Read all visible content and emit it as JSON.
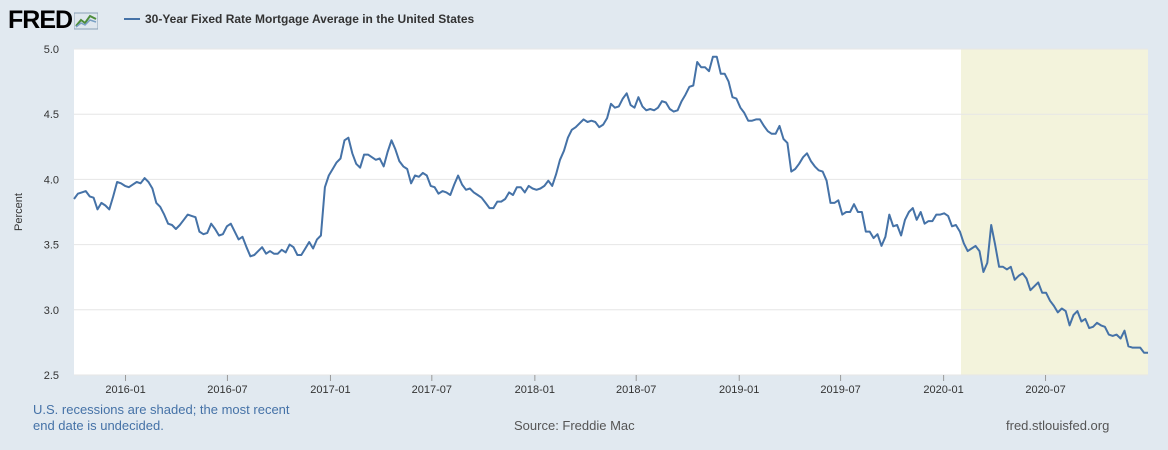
{
  "header": {
    "logo_text": "FRED",
    "legend_label": "30-Year Fixed Rate Mortgage Average in the United States"
  },
  "footer": {
    "note_line1": "U.S. recessions are shaded; the most recent",
    "note_line2": "end date is undecided.",
    "source": "Source: Freddie Mac",
    "url": "fred.stlouisfed.org"
  },
  "colors": {
    "line": "#4572a7",
    "recession": "#f3f3dc",
    "grid": "#e6e6e6",
    "plot_bg": "#ffffff"
  },
  "chart_data": {
    "type": "line",
    "title": "30-Year Fixed Rate Mortgage Average in the United States",
    "ylabel": "Percent",
    "xlabel": "",
    "ylim": [
      2.5,
      5.0
    ],
    "yticks": [
      2.5,
      3.0,
      3.5,
      4.0,
      4.5,
      5.0
    ],
    "xlim": [
      "2015-10-01",
      "2020-12-31"
    ],
    "xticks": [
      "2016-01",
      "2016-07",
      "2017-01",
      "2017-07",
      "2018-01",
      "2018-07",
      "2019-01",
      "2019-07",
      "2020-01",
      "2020-07"
    ],
    "recession": {
      "start": "2020-02-01",
      "end": "2020-12-31"
    },
    "series": [
      {
        "name": "30-Year Fixed Rate Mortgage Average in the United States",
        "points": [
          [
            "2015-10-01",
            3.85
          ],
          [
            "2015-10-08",
            3.89
          ],
          [
            "2015-10-15",
            3.9
          ],
          [
            "2015-10-22",
            3.91
          ],
          [
            "2015-10-29",
            3.87
          ],
          [
            "2015-11-05",
            3.86
          ],
          [
            "2015-11-12",
            3.77
          ],
          [
            "2015-11-19",
            3.82
          ],
          [
            "2015-11-26",
            3.8
          ],
          [
            "2015-12-03",
            3.77
          ],
          [
            "2015-12-10",
            3.87
          ],
          [
            "2015-12-17",
            3.98
          ],
          [
            "2015-12-24",
            3.97
          ],
          [
            "2015-12-31",
            3.95
          ],
          [
            "2016-01-07",
            3.94
          ],
          [
            "2016-01-14",
            3.96
          ],
          [
            "2016-01-21",
            3.98
          ],
          [
            "2016-01-28",
            3.97
          ],
          [
            "2016-02-04",
            4.01
          ],
          [
            "2016-02-11",
            3.98
          ],
          [
            "2016-02-18",
            3.93
          ],
          [
            "2016-02-25",
            3.82
          ],
          [
            "2016-03-03",
            3.79
          ],
          [
            "2016-03-10",
            3.73
          ],
          [
            "2016-03-17",
            3.66
          ],
          [
            "2016-03-24",
            3.65
          ],
          [
            "2016-03-31",
            3.62
          ],
          [
            "2016-04-07",
            3.65
          ],
          [
            "2016-04-14",
            3.69
          ],
          [
            "2016-04-21",
            3.73
          ],
          [
            "2016-04-28",
            3.72
          ],
          [
            "2016-05-05",
            3.71
          ],
          [
            "2016-05-12",
            3.6
          ],
          [
            "2016-05-19",
            3.58
          ],
          [
            "2016-05-26",
            3.59
          ],
          [
            "2016-06-02",
            3.66
          ],
          [
            "2016-06-09",
            3.62
          ],
          [
            "2016-06-16",
            3.57
          ],
          [
            "2016-06-23",
            3.58
          ],
          [
            "2016-06-30",
            3.64
          ],
          [
            "2016-07-07",
            3.66
          ],
          [
            "2016-07-14",
            3.6
          ],
          [
            "2016-07-21",
            3.54
          ],
          [
            "2016-07-28",
            3.56
          ],
          [
            "2016-08-04",
            3.48
          ],
          [
            "2016-08-11",
            3.41
          ],
          [
            "2016-08-18",
            3.42
          ],
          [
            "2016-08-25",
            3.45
          ],
          [
            "2016-09-01",
            3.48
          ],
          [
            "2016-09-08",
            3.43
          ],
          [
            "2016-09-15",
            3.45
          ],
          [
            "2016-09-22",
            3.43
          ],
          [
            "2016-09-29",
            3.43
          ],
          [
            "2016-10-06",
            3.46
          ],
          [
            "2016-10-13",
            3.44
          ],
          [
            "2016-10-20",
            3.5
          ],
          [
            "2016-10-27",
            3.48
          ],
          [
            "2016-11-03",
            3.42
          ],
          [
            "2016-11-10",
            3.42
          ],
          [
            "2016-11-17",
            3.47
          ],
          [
            "2016-11-24",
            3.52
          ],
          [
            "2016-12-01",
            3.47
          ],
          [
            "2016-12-08",
            3.54
          ],
          [
            "2016-12-15",
            3.57
          ],
          [
            "2016-12-22",
            3.94
          ],
          [
            "2016-12-29",
            4.03
          ],
          [
            "2017-01-05",
            4.08
          ],
          [
            "2017-01-12",
            4.13
          ],
          [
            "2017-01-19",
            4.16
          ],
          [
            "2017-01-26",
            4.3
          ],
          [
            "2017-02-02",
            4.32
          ],
          [
            "2017-02-09",
            4.2
          ],
          [
            "2017-02-16",
            4.12
          ],
          [
            "2017-02-23",
            4.09
          ],
          [
            "2017-03-02",
            4.19
          ],
          [
            "2017-03-09",
            4.19
          ],
          [
            "2017-03-16",
            4.17
          ],
          [
            "2017-03-23",
            4.15
          ],
          [
            "2017-03-30",
            4.16
          ],
          [
            "2017-04-06",
            4.1
          ],
          [
            "2017-04-13",
            4.21
          ],
          [
            "2017-04-20",
            4.3
          ],
          [
            "2017-04-27",
            4.23
          ],
          [
            "2017-05-04",
            4.14
          ],
          [
            "2017-05-11",
            4.1
          ],
          [
            "2017-05-18",
            4.08
          ],
          [
            "2017-05-25",
            3.97
          ],
          [
            "2017-06-01",
            4.03
          ],
          [
            "2017-06-08",
            4.02
          ],
          [
            "2017-06-15",
            4.05
          ],
          [
            "2017-06-22",
            4.03
          ],
          [
            "2017-06-29",
            3.95
          ],
          [
            "2017-07-06",
            3.94
          ],
          [
            "2017-07-13",
            3.89
          ],
          [
            "2017-07-20",
            3.91
          ],
          [
            "2017-07-27",
            3.9
          ],
          [
            "2017-08-03",
            3.88
          ],
          [
            "2017-08-10",
            3.96
          ],
          [
            "2017-08-17",
            4.03
          ],
          [
            "2017-08-24",
            3.96
          ],
          [
            "2017-08-31",
            3.92
          ],
          [
            "2017-09-07",
            3.93
          ],
          [
            "2017-09-14",
            3.9
          ],
          [
            "2017-09-21",
            3.88
          ],
          [
            "2017-09-28",
            3.86
          ],
          [
            "2017-10-05",
            3.82
          ],
          [
            "2017-10-12",
            3.78
          ],
          [
            "2017-10-19",
            3.78
          ],
          [
            "2017-10-26",
            3.83
          ],
          [
            "2017-11-02",
            3.83
          ],
          [
            "2017-11-09",
            3.85
          ],
          [
            "2017-11-16",
            3.9
          ],
          [
            "2017-11-23",
            3.88
          ],
          [
            "2017-11-30",
            3.94
          ],
          [
            "2017-12-07",
            3.94
          ],
          [
            "2017-12-14",
            3.9
          ],
          [
            "2017-12-21",
            3.95
          ],
          [
            "2017-12-28",
            3.93
          ],
          [
            "2018-01-04",
            3.92
          ],
          [
            "2018-01-11",
            3.93
          ],
          [
            "2018-01-18",
            3.95
          ],
          [
            "2018-01-25",
            3.99
          ],
          [
            "2018-02-01",
            3.95
          ],
          [
            "2018-02-08",
            4.04
          ],
          [
            "2018-02-15",
            4.15
          ],
          [
            "2018-02-22",
            4.22
          ],
          [
            "2018-03-01",
            4.32
          ],
          [
            "2018-03-08",
            4.38
          ],
          [
            "2018-03-15",
            4.4
          ],
          [
            "2018-03-22",
            4.43
          ],
          [
            "2018-03-29",
            4.46
          ],
          [
            "2018-04-05",
            4.44
          ],
          [
            "2018-04-12",
            4.45
          ],
          [
            "2018-04-19",
            4.44
          ],
          [
            "2018-04-26",
            4.4
          ],
          [
            "2018-05-03",
            4.42
          ],
          [
            "2018-05-10",
            4.47
          ],
          [
            "2018-05-17",
            4.58
          ],
          [
            "2018-05-24",
            4.55
          ],
          [
            "2018-05-31",
            4.56
          ],
          [
            "2018-06-07",
            4.62
          ],
          [
            "2018-06-14",
            4.66
          ],
          [
            "2018-06-21",
            4.57
          ],
          [
            "2018-06-28",
            4.55
          ],
          [
            "2018-07-05",
            4.63
          ],
          [
            "2018-07-12",
            4.56
          ],
          [
            "2018-07-19",
            4.53
          ],
          [
            "2018-07-26",
            4.54
          ],
          [
            "2018-08-02",
            4.53
          ],
          [
            "2018-08-09",
            4.55
          ],
          [
            "2018-08-16",
            4.6
          ],
          [
            "2018-08-23",
            4.59
          ],
          [
            "2018-08-30",
            4.54
          ],
          [
            "2018-09-06",
            4.52
          ],
          [
            "2018-09-13",
            4.53
          ],
          [
            "2018-09-20",
            4.6
          ],
          [
            "2018-09-27",
            4.65
          ],
          [
            "2018-10-04",
            4.71
          ],
          [
            "2018-10-11",
            4.72
          ],
          [
            "2018-10-18",
            4.9
          ],
          [
            "2018-10-25",
            4.86
          ],
          [
            "2018-11-01",
            4.86
          ],
          [
            "2018-11-08",
            4.83
          ],
          [
            "2018-11-15",
            4.94
          ],
          [
            "2018-11-22",
            4.94
          ],
          [
            "2018-11-29",
            4.81
          ],
          [
            "2018-12-06",
            4.81
          ],
          [
            "2018-12-13",
            4.75
          ],
          [
            "2018-12-20",
            4.63
          ],
          [
            "2018-12-27",
            4.62
          ],
          [
            "2019-01-03",
            4.55
          ],
          [
            "2019-01-10",
            4.51
          ],
          [
            "2019-01-17",
            4.45
          ],
          [
            "2019-01-24",
            4.45
          ],
          [
            "2019-01-31",
            4.46
          ],
          [
            "2019-02-07",
            4.46
          ],
          [
            "2019-02-14",
            4.41
          ],
          [
            "2019-02-21",
            4.37
          ],
          [
            "2019-02-28",
            4.35
          ],
          [
            "2019-03-07",
            4.35
          ],
          [
            "2019-03-14",
            4.41
          ],
          [
            "2019-03-21",
            4.31
          ],
          [
            "2019-03-28",
            4.28
          ],
          [
            "2019-04-04",
            4.06
          ],
          [
            "2019-04-11",
            4.08
          ],
          [
            "2019-04-18",
            4.12
          ],
          [
            "2019-04-25",
            4.17
          ],
          [
            "2019-05-02",
            4.2
          ],
          [
            "2019-05-09",
            4.14
          ],
          [
            "2019-05-16",
            4.1
          ],
          [
            "2019-05-23",
            4.07
          ],
          [
            "2019-05-30",
            4.06
          ],
          [
            "2019-06-06",
            3.99
          ],
          [
            "2019-06-13",
            3.82
          ],
          [
            "2019-06-20",
            3.82
          ],
          [
            "2019-06-27",
            3.84
          ],
          [
            "2019-07-04",
            3.73
          ],
          [
            "2019-07-11",
            3.75
          ],
          [
            "2019-07-18",
            3.75
          ],
          [
            "2019-07-25",
            3.81
          ],
          [
            "2019-08-01",
            3.75
          ],
          [
            "2019-08-08",
            3.75
          ],
          [
            "2019-08-15",
            3.6
          ],
          [
            "2019-08-22",
            3.6
          ],
          [
            "2019-08-29",
            3.55
          ],
          [
            "2019-09-05",
            3.58
          ],
          [
            "2019-09-12",
            3.49
          ],
          [
            "2019-09-19",
            3.56
          ],
          [
            "2019-09-26",
            3.73
          ],
          [
            "2019-10-03",
            3.64
          ],
          [
            "2019-10-10",
            3.65
          ],
          [
            "2019-10-17",
            3.57
          ],
          [
            "2019-10-24",
            3.69
          ],
          [
            "2019-10-31",
            3.75
          ],
          [
            "2019-11-07",
            3.78
          ],
          [
            "2019-11-14",
            3.69
          ],
          [
            "2019-11-21",
            3.75
          ],
          [
            "2019-11-28",
            3.66
          ],
          [
            "2019-12-05",
            3.68
          ],
          [
            "2019-12-12",
            3.68
          ],
          [
            "2019-12-19",
            3.73
          ],
          [
            "2019-12-26",
            3.73
          ],
          [
            "2020-01-02",
            3.74
          ],
          [
            "2020-01-09",
            3.72
          ],
          [
            "2020-01-16",
            3.64
          ],
          [
            "2020-01-23",
            3.65
          ],
          [
            "2020-01-30",
            3.6
          ],
          [
            "2020-02-06",
            3.51
          ],
          [
            "2020-02-13",
            3.45
          ],
          [
            "2020-02-20",
            3.47
          ],
          [
            "2020-02-27",
            3.49
          ],
          [
            "2020-03-05",
            3.45
          ],
          [
            "2020-03-12",
            3.29
          ],
          [
            "2020-03-19",
            3.36
          ],
          [
            "2020-03-26",
            3.65
          ],
          [
            "2020-04-02",
            3.5
          ],
          [
            "2020-04-09",
            3.33
          ],
          [
            "2020-04-16",
            3.33
          ],
          [
            "2020-04-23",
            3.31
          ],
          [
            "2020-04-30",
            3.33
          ],
          [
            "2020-05-07",
            3.23
          ],
          [
            "2020-05-14",
            3.26
          ],
          [
            "2020-05-21",
            3.28
          ],
          [
            "2020-05-28",
            3.24
          ],
          [
            "2020-06-04",
            3.15
          ],
          [
            "2020-06-11",
            3.18
          ],
          [
            "2020-06-18",
            3.21
          ],
          [
            "2020-06-25",
            3.13
          ],
          [
            "2020-07-02",
            3.13
          ],
          [
            "2020-07-09",
            3.07
          ],
          [
            "2020-07-16",
            3.03
          ],
          [
            "2020-07-23",
            2.98
          ],
          [
            "2020-07-30",
            3.01
          ],
          [
            "2020-08-06",
            2.99
          ],
          [
            "2020-08-13",
            2.88
          ],
          [
            "2020-08-20",
            2.96
          ],
          [
            "2020-08-27",
            2.99
          ],
          [
            "2020-09-03",
            2.91
          ],
          [
            "2020-09-10",
            2.93
          ],
          [
            "2020-09-17",
            2.86
          ],
          [
            "2020-09-24",
            2.87
          ],
          [
            "2020-10-01",
            2.9
          ],
          [
            "2020-10-08",
            2.88
          ],
          [
            "2020-10-15",
            2.87
          ],
          [
            "2020-10-22",
            2.81
          ],
          [
            "2020-10-29",
            2.8
          ],
          [
            "2020-11-05",
            2.81
          ],
          [
            "2020-11-12",
            2.78
          ],
          [
            "2020-11-19",
            2.84
          ],
          [
            "2020-11-26",
            2.72
          ],
          [
            "2020-12-03",
            2.71
          ],
          [
            "2020-12-10",
            2.71
          ],
          [
            "2020-12-17",
            2.71
          ],
          [
            "2020-12-24",
            2.67
          ],
          [
            "2020-12-31",
            2.67
          ]
        ]
      }
    ]
  }
}
